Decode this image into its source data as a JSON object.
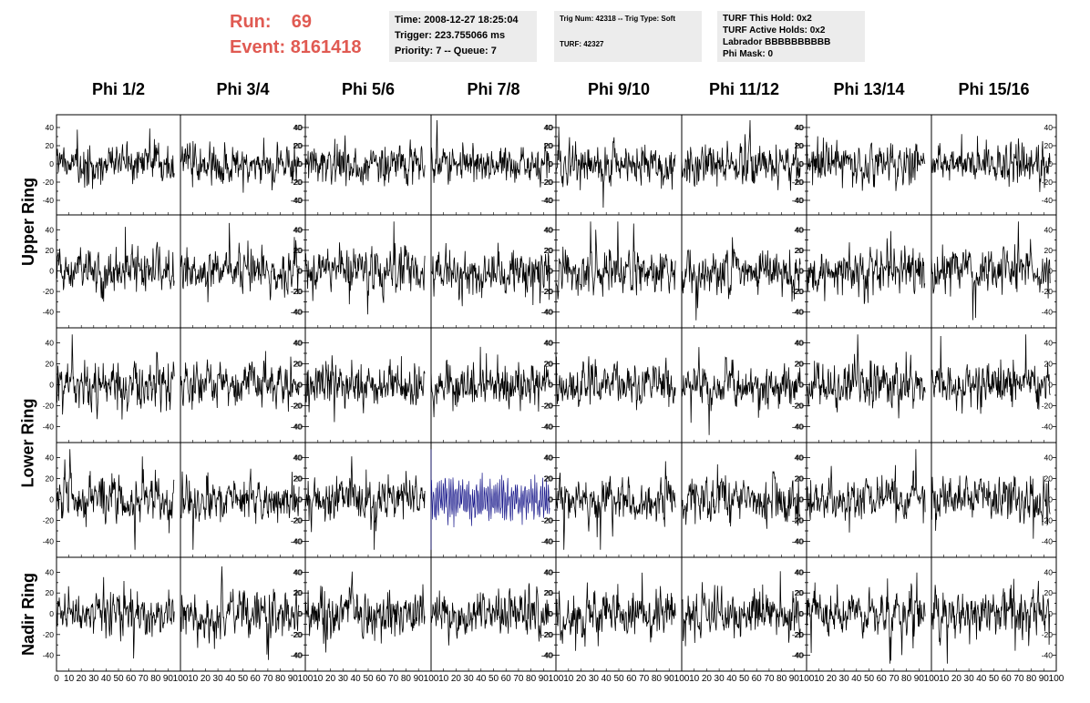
{
  "header": {
    "run_label": "Run:",
    "run_value": "69",
    "event_label": "Event:",
    "event_value": "8161418",
    "accent_color": "#e05a52"
  },
  "info_boxes": [
    {
      "lines": [
        "Time: 2008-12-27 18:25:04",
        "Trigger: 223.755066 ms",
        "Priority: 7 -- Queue: 7"
      ]
    },
    {
      "lines": [
        "Trig Num: 42318 -- Trig Type: Soft",
        "",
        "TURF: 42327"
      ]
    },
    {
      "lines": [
        "TURF This Hold: 0x2",
        "TURF Active Holds: 0x2",
        "Labrador BBBBBBBBBB",
        "Phi Mask: 0"
      ]
    }
  ],
  "chart_data": {
    "type": "line",
    "columns": [
      "Phi 1/2",
      "Phi 3/4",
      "Phi 5/6",
      "Phi 7/8",
      "Phi 9/10",
      "Phi 11/12",
      "Phi 13/14",
      "Phi 15/16"
    ],
    "rows": [
      "Upper Ring",
      "Lower Ring",
      "Nadir Ring"
    ],
    "xlim": [
      0,
      100
    ],
    "x_ticks": [
      0,
      10,
      20,
      30,
      40,
      50,
      60,
      70,
      80,
      90,
      100
    ],
    "ylim": [
      -50,
      50
    ],
    "y_ticks": [
      -40,
      -20,
      0,
      20,
      40
    ],
    "waveform_samples_x_end": 95,
    "series_color": "#000000",
    "highlight_color": "#1a1a8c",
    "highlight_panel": {
      "row": 3,
      "col": 3
    }
  }
}
